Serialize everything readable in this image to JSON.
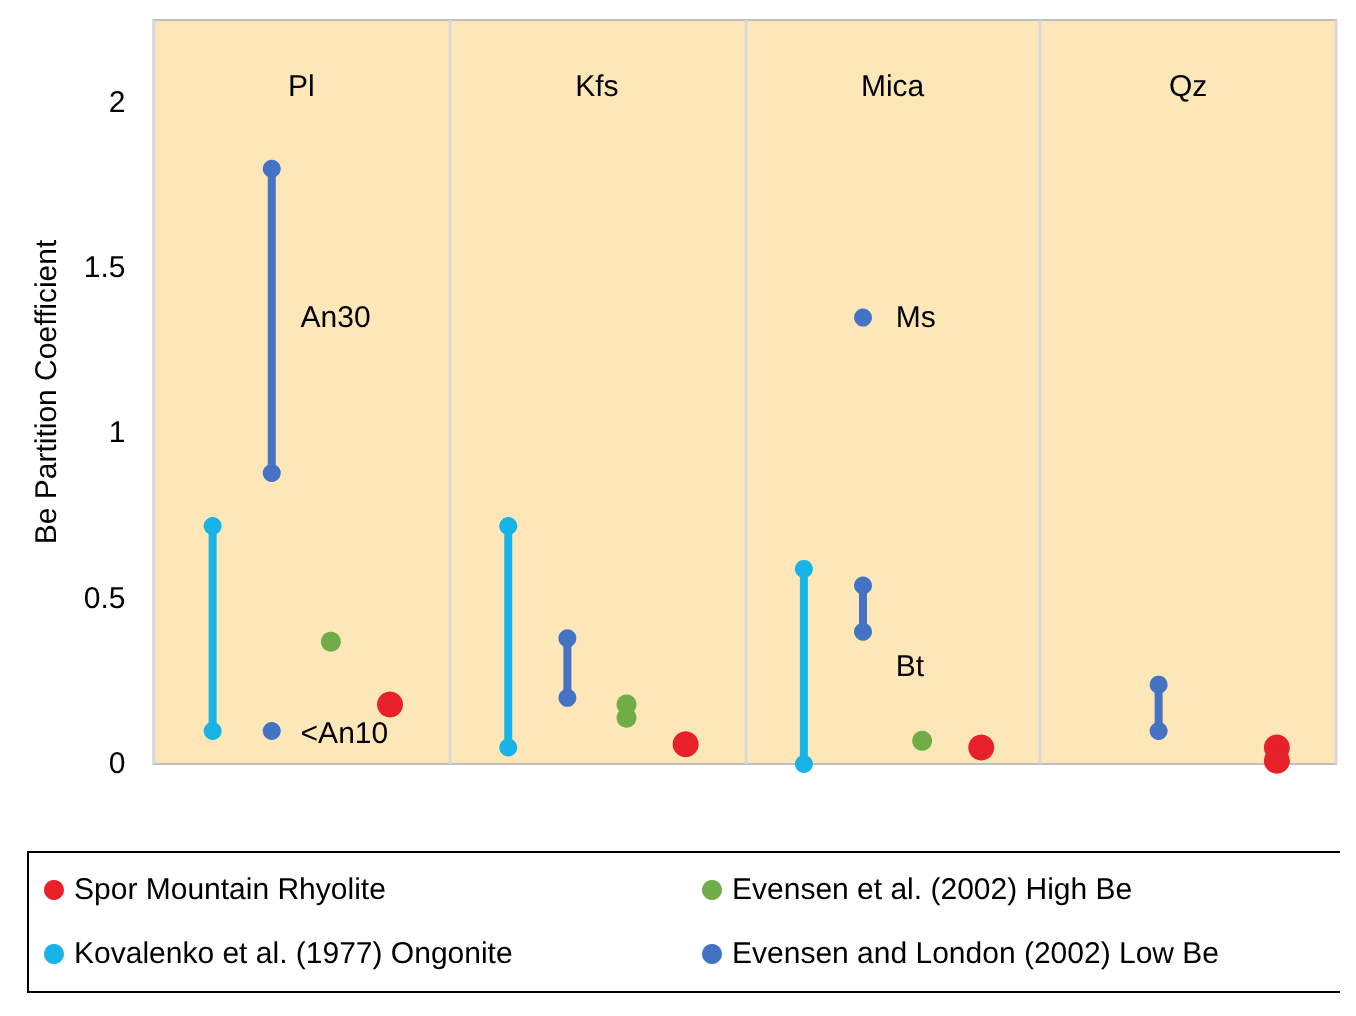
{
  "chart_data": {
    "type": "scatter",
    "ylabel": "Be Partition Coefficient",
    "categories": [
      "Pl",
      "Kfs",
      "Mica",
      "Qz"
    ],
    "ylim": [
      0,
      2.25
    ],
    "yticks": [
      0,
      0.5,
      1,
      1.5,
      2
    ],
    "grid": "x",
    "legend": "bottom",
    "marker": "circle",
    "series": [
      {
        "name": "Spor Mountain Rhyolite",
        "color": "#e8202a",
        "x": [
          "Pl",
          "Kfs",
          "Mica",
          "Qz",
          "Qz"
        ],
        "values": [
          0.18,
          0.06,
          0.05,
          0.05,
          0.01
        ]
      },
      {
        "name": "Evensen et al. (2002) High Be",
        "color": "#70ad47",
        "x": [
          "Pl",
          "Kfs",
          "Kfs",
          "Mica"
        ],
        "values": [
          0.37,
          0.18,
          0.14,
          0.07
        ]
      },
      {
        "name": "Kovalenko et al. (1977) Ongonite",
        "type": "line",
        "color": "#18b4e8",
        "x": [
          "Pl",
          "Pl",
          "Pl",
          "Kfs",
          "Kfs",
          "Kfs",
          "Mica",
          "Mica"
        ],
        "values": [
          0.1,
          0.72,
          null,
          0.05,
          0.72,
          null,
          0,
          0.59
        ]
      },
      {
        "name": "Evensen and London (2002) Low Be",
        "type": "line",
        "color": "#4472c4",
        "x": [
          "Pl",
          "Pl",
          "Pl",
          "Pl",
          "Pl",
          "Kfs",
          "Kfs",
          "Kfs",
          "Mica",
          "Mica",
          "Mica",
          "Mica",
          "Mica",
          "Qz",
          "Qz"
        ],
        "values": [
          0.88,
          1.8,
          null,
          0.1,
          null,
          0.2,
          0.38,
          null,
          1.35,
          null,
          0.4,
          0.54,
          null,
          0.1,
          0.24
        ]
      }
    ],
    "annotations": [
      "An30",
      "<An10",
      "Ms",
      "Bt"
    ]
  }
}
